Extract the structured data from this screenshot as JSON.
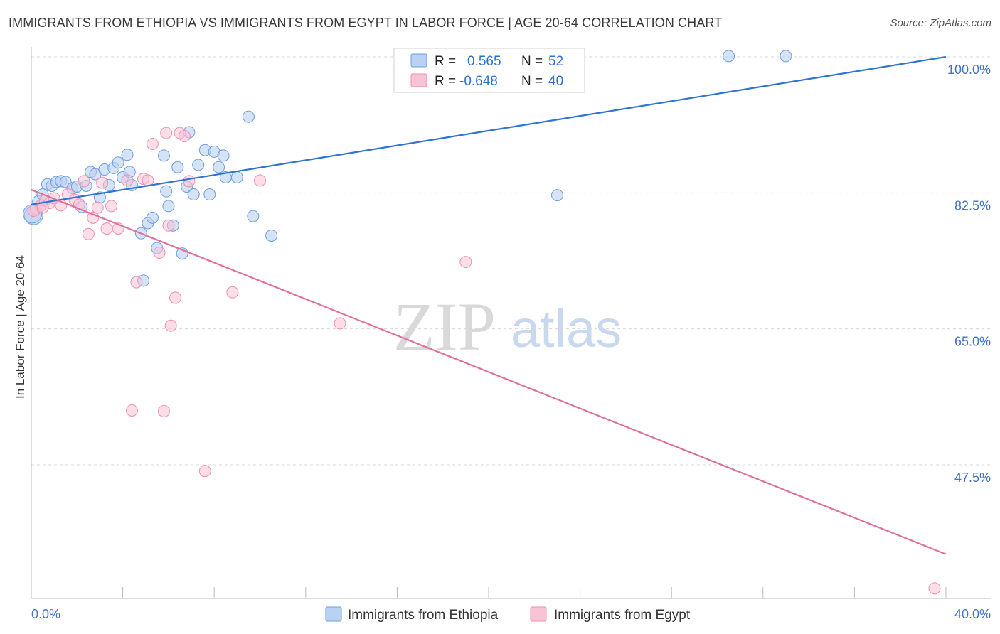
{
  "title": "IMMIGRANTS FROM ETHIOPIA VS IMMIGRANTS FROM EGYPT IN LABOR FORCE | AGE 20-64 CORRELATION CHART",
  "source": "Source: ZipAtlas.com",
  "watermark": {
    "zip": "ZIP",
    "atlas": "atlas"
  },
  "colors": {
    "ethiopia_fill": "#b9d1f2",
    "ethiopia_stroke": "#6d9de0",
    "ethiopia_line": "#2f74d0",
    "egypt_fill": "#f8c3d4",
    "egypt_stroke": "#ee8fae",
    "egypt_line": "#e0709a",
    "grid": "#d8d8d8",
    "tick_text": "#4472c4"
  },
  "legend": {
    "rows": [
      {
        "r_label": "R =",
        "r_value": "0.565",
        "n_label": "N =",
        "n_value": "52"
      },
      {
        "r_label": "R =",
        "r_value": "-0.648",
        "n_label": "N =",
        "n_value": "40"
      }
    ]
  },
  "chart_data": {
    "type": "scatter",
    "title": "IMMIGRANTS FROM ETHIOPIA VS IMMIGRANTS FROM EGYPT IN LABOR FORCE | AGE 20-64 CORRELATION CHART",
    "xlabel": "",
    "ylabel": "In Labor Force | Age 20-64",
    "xlim": [
      0,
      40
    ],
    "ylim": [
      32,
      102
    ],
    "x_tick_labels": {
      "left": "0.0%",
      "right": "40.0%"
    },
    "y_ticks": [
      {
        "value": 100,
        "label": "100.0%"
      },
      {
        "value": 82.5,
        "label": "82.5%"
      },
      {
        "value": 65,
        "label": "65.0%"
      },
      {
        "value": 47.5,
        "label": "47.5%"
      }
    ],
    "legend_position": "bottom",
    "series": [
      {
        "name": "Immigrants from Ethiopia",
        "r": 0.565,
        "n": 52,
        "trend": {
          "x": [
            0,
            40
          ],
          "y": [
            81.0,
            100.0
          ]
        },
        "points": [
          [
            0.1,
            79.6
          ],
          [
            0.3,
            81.4
          ],
          [
            0.5,
            82.3
          ],
          [
            0.7,
            83.6
          ],
          [
            0.9,
            83.4
          ],
          [
            1.1,
            83.9
          ],
          [
            1.3,
            84.0
          ],
          [
            1.5,
            83.9
          ],
          [
            1.8,
            83.1
          ],
          [
            2.0,
            83.3
          ],
          [
            2.2,
            80.7
          ],
          [
            2.4,
            83.4
          ],
          [
            2.6,
            85.2
          ],
          [
            2.8,
            84.9
          ],
          [
            3.0,
            81.9
          ],
          [
            3.2,
            85.5
          ],
          [
            3.4,
            83.5
          ],
          [
            3.6,
            85.7
          ],
          [
            3.8,
            86.4
          ],
          [
            4.0,
            84.5
          ],
          [
            4.2,
            87.4
          ],
          [
            4.3,
            85.2
          ],
          [
            4.4,
            83.5
          ],
          [
            4.8,
            77.3
          ],
          [
            4.9,
            71.2
          ],
          [
            5.1,
            78.6
          ],
          [
            5.3,
            79.3
          ],
          [
            5.5,
            75.4
          ],
          [
            5.8,
            87.3
          ],
          [
            5.9,
            82.7
          ],
          [
            6.0,
            80.8
          ],
          [
            6.2,
            78.3
          ],
          [
            6.4,
            85.8
          ],
          [
            6.6,
            74.7
          ],
          [
            6.8,
            83.3
          ],
          [
            6.9,
            90.3
          ],
          [
            7.1,
            82.3
          ],
          [
            7.3,
            86.1
          ],
          [
            7.6,
            88.0
          ],
          [
            7.8,
            82.3
          ],
          [
            8.0,
            87.8
          ],
          [
            8.2,
            85.8
          ],
          [
            8.4,
            87.3
          ],
          [
            8.5,
            84.5
          ],
          [
            9.0,
            84.5
          ],
          [
            9.5,
            92.3
          ],
          [
            9.7,
            79.5
          ],
          [
            10.5,
            77.0
          ],
          [
            23.0,
            82.2
          ],
          [
            30.5,
            100.1
          ],
          [
            33.0,
            100.1
          ],
          [
            0.05,
            79.8
          ]
        ]
      },
      {
        "name": "Immigrants from Egypt",
        "r": -0.648,
        "n": 40,
        "trend": {
          "x": [
            0,
            40
          ],
          "y": [
            82.9,
            36.0
          ]
        },
        "points": [
          [
            0.2,
            80.4
          ],
          [
            0.4,
            80.8
          ],
          [
            0.6,
            81.5
          ],
          [
            0.8,
            81.2
          ],
          [
            1.0,
            81.8
          ],
          [
            1.3,
            80.9
          ],
          [
            1.6,
            82.3
          ],
          [
            1.9,
            81.6
          ],
          [
            2.1,
            81.0
          ],
          [
            2.3,
            84.0
          ],
          [
            2.5,
            77.2
          ],
          [
            2.7,
            79.3
          ],
          [
            2.9,
            80.6
          ],
          [
            3.1,
            83.8
          ],
          [
            3.3,
            77.9
          ],
          [
            3.5,
            80.8
          ],
          [
            3.8,
            77.9
          ],
          [
            4.2,
            84.1
          ],
          [
            4.4,
            54.5
          ],
          [
            4.6,
            71.0
          ],
          [
            4.9,
            84.3
          ],
          [
            5.1,
            84.1
          ],
          [
            5.3,
            88.8
          ],
          [
            5.6,
            74.8
          ],
          [
            5.8,
            54.4
          ],
          [
            5.9,
            90.2
          ],
          [
            6.0,
            78.3
          ],
          [
            6.1,
            65.4
          ],
          [
            6.3,
            69.0
          ],
          [
            6.5,
            90.2
          ],
          [
            6.7,
            89.8
          ],
          [
            6.9,
            84.0
          ],
          [
            7.6,
            46.7
          ],
          [
            8.8,
            69.7
          ],
          [
            10.0,
            84.1
          ],
          [
            13.5,
            65.7
          ],
          [
            19.0,
            73.6
          ],
          [
            39.5,
            31.6
          ],
          [
            0.1,
            80.2
          ],
          [
            0.5,
            80.6
          ]
        ]
      }
    ]
  },
  "bottom_legend": [
    "Immigrants from Ethiopia",
    "Immigrants from Egypt"
  ]
}
